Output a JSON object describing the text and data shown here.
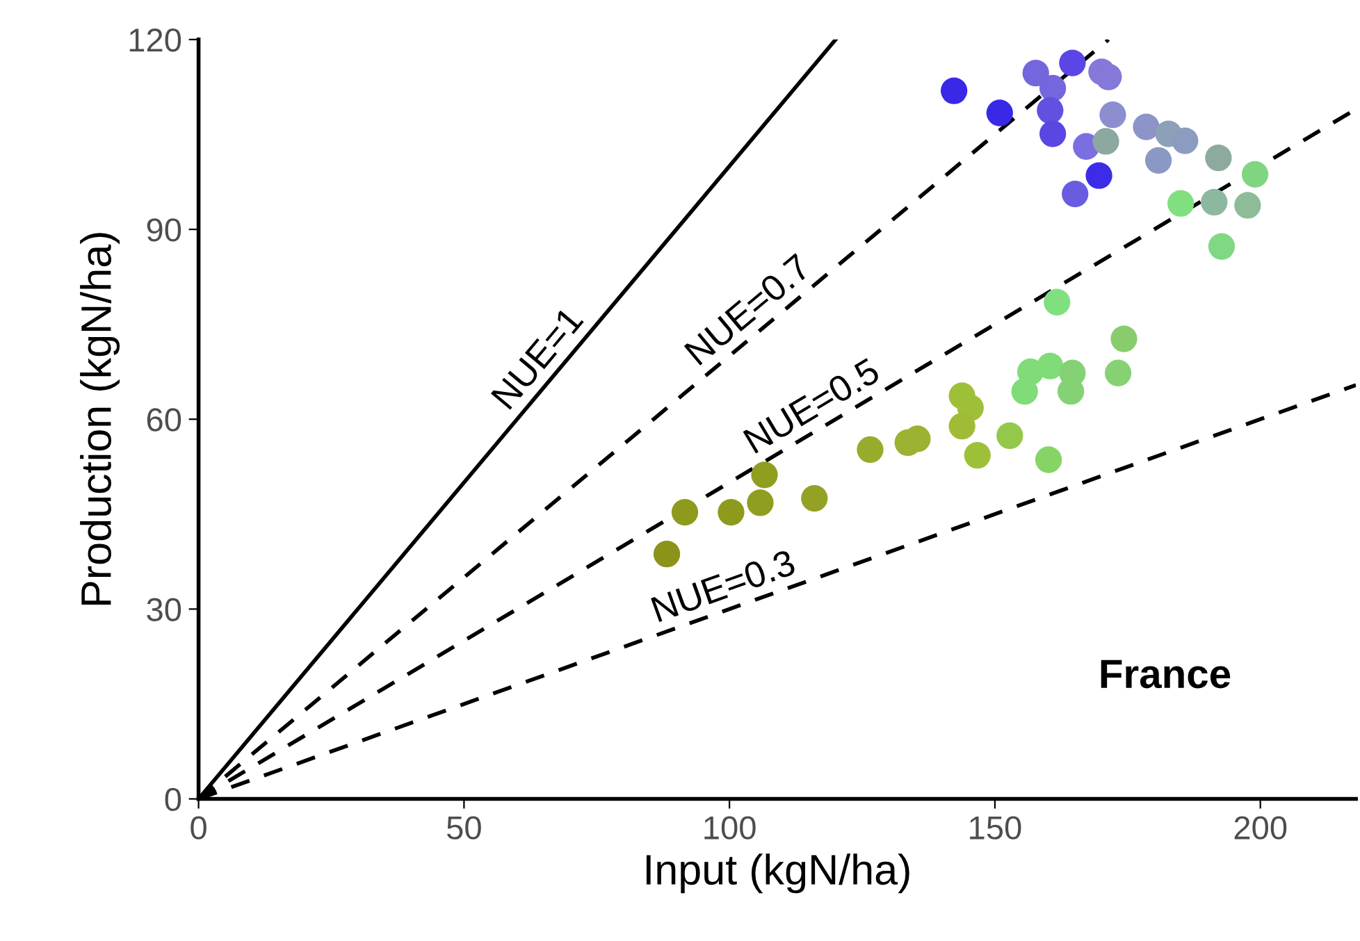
{
  "chart_data": {
    "type": "scatter",
    "xlabel": "Input (kgN/ha)",
    "ylabel": "Production (kgN/ha)",
    "xlim": [
      0,
      218
    ],
    "ylim": [
      0,
      120
    ],
    "xticks": [
      0,
      50,
      100,
      150,
      200
    ],
    "yticks": [
      0,
      30,
      60,
      90,
      120
    ],
    "grid": false,
    "legend": false,
    "series": [
      {
        "type": "line",
        "name": "NUE=1",
        "color": "#000000",
        "line_style": "solid",
        "x": [
          0,
          120
        ],
        "values": [
          0,
          120
        ]
      },
      {
        "type": "line",
        "name": "NUE=0.7",
        "color": "#000000",
        "line_style": "dashed",
        "x": [
          0,
          171.4
        ],
        "values": [
          0,
          120
        ]
      },
      {
        "type": "line",
        "name": "NUE=0.5",
        "color": "#000000",
        "line_style": "dashed",
        "x": [
          0,
          218
        ],
        "values": [
          0,
          109
        ]
      },
      {
        "type": "line",
        "name": "NUE=0.3",
        "color": "#000000",
        "line_style": "dashed",
        "x": [
          0,
          218
        ],
        "values": [
          0,
          65.4
        ]
      },
      {
        "marker": "circle",
        "x": [
          88.2,
          91.6,
          100.3,
          105.8,
          106.6,
          116.0,
          126.5,
          133.6,
          135.4,
          143.8,
          145.4,
          143.8,
          146.7,
          152.8,
          160.1,
          156.7,
          155.6,
          160.4,
          164.6,
          164.3,
          161.7,
          174.3,
          173.2,
          142.3,
          150.9,
          157.7,
          164.6,
          170.1,
          171.4,
          160.9,
          160.4,
          160.9,
          167.2,
          170.9,
          169.6,
          165.1,
          172.2,
          178.5,
          182.7,
          185.8,
          180.8,
          192.1,
          199.0,
          185.0,
          191.3,
          197.6,
          192.7
        ],
        "values": [
          38.7,
          45.3,
          45.3,
          46.8,
          51.2,
          47.5,
          55.2,
          56.3,
          56.9,
          63.7,
          61.8,
          58.9,
          54.3,
          57.4,
          53.6,
          67.5,
          64.4,
          68.4,
          67.3,
          64.4,
          78.5,
          72.7,
          67.3,
          111.9,
          108.4,
          114.7,
          116.3,
          114.9,
          114.1,
          112.3,
          108.8,
          105.1,
          103.1,
          103.9,
          98.5,
          95.6,
          108.1,
          106.2,
          105.1,
          104.0,
          100.9,
          101.3,
          98.7,
          94.1,
          94.3,
          93.8,
          87.3
        ],
        "colors": [
          "#8b9418",
          "#8e9a1c",
          "#8e9a1c",
          "#909e20",
          "#909e20",
          "#93a224",
          "#98ac2c",
          "#9bb232",
          "#9bb232",
          "#9ec038",
          "#9ec038",
          "#a0bc36",
          "#9ec038",
          "#94c84a",
          "#86d466",
          "#80dc78",
          "#80dc78",
          "#80dc78",
          "#84d274",
          "#84d274",
          "#80e080",
          "#88cc6c",
          "#86d272",
          "#3a28e8",
          "#3a28e8",
          "#7466dc",
          "#5a46e6",
          "#8478d8",
          "#8478d8",
          "#7466dc",
          "#6250e0",
          "#5a46e0",
          "#7a6ee0",
          "#8ca8a0",
          "#3c2ce8",
          "#6a5ce0",
          "#8c8ed0",
          "#8c94c8",
          "#8ca0b8",
          "#8c9cc0",
          "#8c98c4",
          "#8cab9c",
          "#80d680",
          "#80e080",
          "#8cb8a0",
          "#8cbc98",
          "#80d884"
        ]
      }
    ],
    "annotations": [
      "France"
    ]
  }
}
